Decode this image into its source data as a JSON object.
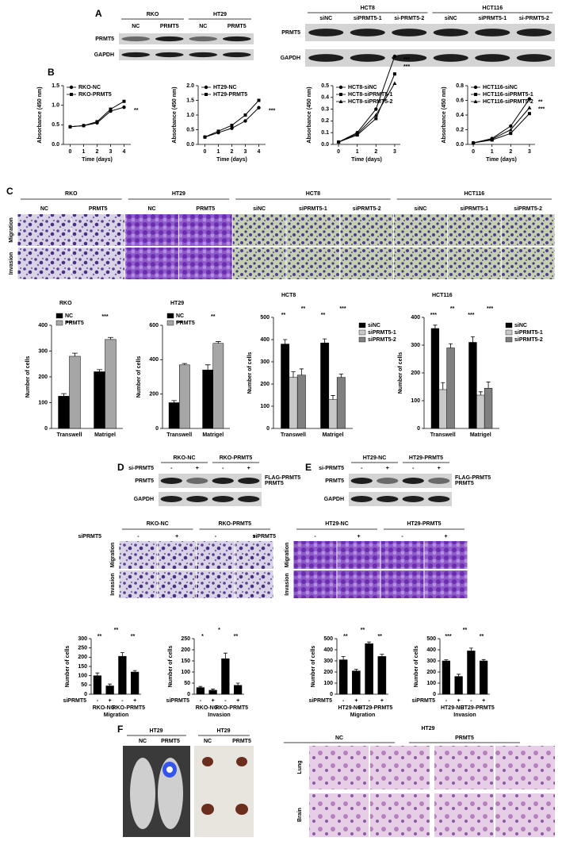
{
  "panel_labels": [
    "A",
    "B",
    "C",
    "D",
    "E",
    "F"
  ],
  "blot_a_left": {
    "groups": [
      "RKO",
      "HT29"
    ],
    "lanes": [
      "NC",
      "PRMT5",
      "NC",
      "PRMT5"
    ],
    "rows": [
      "PRMT5",
      "GAPDH"
    ]
  },
  "blot_a_right": {
    "groups": [
      "HCT8",
      "HCT116"
    ],
    "lanes": [
      "siNC",
      "siPRMT5-1",
      "si-PRMT5-2",
      "siNC",
      "siPRMT5-1",
      "si-PRMT5-2"
    ],
    "rows": [
      "PRMT5",
      "GAPDH"
    ]
  },
  "images_c": {
    "groups": [
      "RKO",
      "HT29",
      "HCT8",
      "HCT116"
    ],
    "lanes": [
      "NC",
      "PRMT5",
      "NC",
      "PRMT5",
      "siNC",
      "siPRMT5-1",
      "siPRMT5-2",
      "siNC",
      "siPRMT5-1",
      "siPRMT5-2"
    ],
    "rows": [
      "Migration",
      "Invasion"
    ]
  },
  "blot_d": {
    "treatment": "si-PRMT5",
    "groups": [
      "RKO-NC",
      "RKO-PRMT5"
    ],
    "lanes": [
      "-",
      "+",
      "-",
      "+"
    ],
    "rows": [
      "PRMT5",
      "GAPDH"
    ],
    "band_labels": [
      "FLAG-PRMT5",
      "PRMT5"
    ]
  },
  "blot_e": {
    "treatment": "si-PRMT5",
    "groups": [
      "HT29-NC",
      "HT29-PRMT5"
    ],
    "lanes": [
      "-",
      "+",
      "-",
      "+"
    ],
    "rows": [
      "PRMT5",
      "GAPDH"
    ],
    "band_labels": [
      "FLAG-PRMT5",
      "PRMT5"
    ]
  },
  "images_d": {
    "treatment": "siPRMT5",
    "groups": [
      "RKO-NC",
      "RKO-PRMT5"
    ],
    "lanes": [
      "-",
      "+",
      "-",
      "+"
    ],
    "rows": [
      "Migration",
      "Invasion"
    ]
  },
  "images_e": {
    "treatment": "siPRMT5",
    "groups": [
      "HT29-NC",
      "HT29-PRMT5"
    ],
    "lanes": [
      "-",
      "+",
      "-",
      "+"
    ],
    "rows": [
      "Migration",
      "Invasion"
    ]
  },
  "panel_f": {
    "mouse": {
      "title": "HT29",
      "labels": [
        "NC",
        "PRMT5"
      ]
    },
    "organs": {
      "title": "HT29",
      "labels": [
        "NC",
        "PRMT5"
      ]
    },
    "histology": {
      "title": "HT29",
      "groups": [
        "NC",
        "PRMT5"
      ],
      "rows": [
        "Lung",
        "Brain"
      ]
    }
  },
  "chart_data": [
    {
      "type": "line",
      "xlabel": "Time (days)",
      "ylabel": "Absorbance (450 nm)",
      "x": [
        0,
        1,
        2,
        3,
        4
      ],
      "xlim": [
        -0.5,
        4.5
      ],
      "xticks": [
        0,
        1,
        2,
        3,
        4
      ],
      "ylim": [
        0,
        1.5
      ],
      "yticks": [
        {
          "value": 0,
          "label": "0.0"
        },
        0.5,
        {
          "value": 1,
          "label": "1.0"
        },
        1.5
      ],
      "series": [
        {
          "name": "RKO-NC",
          "color": "#000000",
          "values": [
            0.45,
            0.48,
            0.55,
            0.85,
            0.95
          ]
        },
        {
          "name": "RKO-PRMT5",
          "color": "#000000",
          "values": [
            0.45,
            0.48,
            0.58,
            0.9,
            1.1
          ]
        }
      ],
      "annotations": [
        "**"
      ]
    },
    {
      "type": "line",
      "xlabel": "Time (days)",
      "ylabel": "Absorbance (450 nm)",
      "x": [
        0,
        1,
        2,
        3,
        4
      ],
      "xlim": [
        -0.5,
        4.5
      ],
      "xticks": [
        0,
        1,
        2,
        3,
        4
      ],
      "ylim": [
        0,
        2
      ],
      "yticks": [
        {
          "value": 0,
          "label": "0.0"
        },
        0.5,
        {
          "value": 1,
          "label": "1.0"
        },
        1.5,
        {
          "value": 2,
          "label": "2.0"
        }
      ],
      "series": [
        {
          "name": "HT29-NC",
          "color": "#000000",
          "values": [
            0.25,
            0.4,
            0.55,
            0.8,
            1.25
          ]
        },
        {
          "name": "HT29-PRMT5",
          "color": "#000000",
          "values": [
            0.25,
            0.45,
            0.65,
            1.0,
            1.5
          ]
        }
      ],
      "annotations": [
        "***"
      ]
    },
    {
      "type": "line",
      "xlabel": "Time (days)",
      "ylabel": "Absorbance (450 nm)",
      "x": [
        0,
        1,
        2,
        3
      ],
      "xlim": [
        -0.3,
        3.3
      ],
      "xticks": [
        0,
        1,
        2,
        3
      ],
      "ylim": [
        0,
        0.5
      ],
      "yticks": [
        {
          "value": 0,
          "label": "0.0"
        },
        0.1,
        0.2,
        0.3,
        0.4,
        0.5
      ],
      "series": [
        {
          "name": "HCT8-siNC",
          "color": "#000000",
          "values": [
            0.02,
            0.1,
            0.3,
            0.75
          ]
        },
        {
          "name": "HCT8-siPRMT5-1",
          "color": "#000000",
          "values": [
            0.02,
            0.08,
            0.22,
            0.6
          ]
        },
        {
          "name": "HCT8-siPRMT5-2",
          "color": "#000000",
          "values": [
            0.02,
            0.09,
            0.25,
            0.52
          ]
        }
      ],
      "annotations": [
        "***",
        "***"
      ]
    },
    {
      "type": "line",
      "xlabel": "Time (days)",
      "ylabel": "Absorbance (450 nm)",
      "x": [
        0,
        1,
        2,
        3
      ],
      "xlim": [
        -0.3,
        3.3
      ],
      "xticks": [
        0,
        1,
        2,
        3
      ],
      "ylim": [
        0,
        0.8
      ],
      "yticks": [
        {
          "value": 0,
          "label": "0.0"
        },
        0.2,
        0.4,
        0.6,
        0.8
      ],
      "series": [
        {
          "name": "HCT116-siNC",
          "color": "#000000",
          "values": [
            0.02,
            0.08,
            0.25,
            0.62
          ]
        },
        {
          "name": "HCT116-siPRMT5-1",
          "color": "#000000",
          "values": [
            0.02,
            0.06,
            0.15,
            0.42
          ]
        },
        {
          "name": "HCT116-siPRMT5-2",
          "color": "#000000",
          "values": [
            0.02,
            0.07,
            0.2,
            0.5
          ]
        }
      ],
      "annotations": [
        "**",
        "***"
      ]
    },
    {
      "type": "bar",
      "title": "RKO",
      "ylabel": "Number of cells",
      "categories": [
        "Transwell",
        "Matrigel"
      ],
      "legend": "upper left",
      "ylim": [
        0,
        400
      ],
      "yticks": [
        0,
        100,
        200,
        300,
        400
      ],
      "series": [
        {
          "name": "NC",
          "color": "#000000",
          "values": [
            125,
            220
          ],
          "errors": [
            10,
            8
          ]
        },
        {
          "name": "PRMT5",
          "color": "#a6a6a6",
          "values": [
            280,
            345
          ],
          "errors": [
            12,
            8
          ]
        }
      ],
      "annotations": [
        "***",
        "***"
      ]
    },
    {
      "type": "bar",
      "title": "HT29",
      "ylabel": "Number of cells",
      "categories": [
        "Transwell",
        "Matrigel"
      ],
      "legend": "upper left",
      "ylim": [
        0,
        600
      ],
      "yticks": [
        0,
        200,
        400,
        600
      ],
      "series": [
        {
          "name": "NC",
          "color": "#000000",
          "values": [
            150,
            340
          ],
          "errors": [
            12,
            30
          ]
        },
        {
          "name": "PRMT5",
          "color": "#a6a6a6",
          "values": [
            370,
            495
          ],
          "errors": [
            8,
            10
          ]
        }
      ],
      "annotations": [
        "***",
        "**"
      ]
    },
    {
      "type": "bar",
      "title": "HCT8",
      "ylabel": "Number of cells",
      "categories": [
        "Transwell",
        "Matrigel"
      ],
      "legend": "right",
      "ylim": [
        0,
        500
      ],
      "yticks": [
        0,
        100,
        200,
        300,
        400,
        500
      ],
      "series": [
        {
          "name": "siNC",
          "color": "#000000",
          "values": [
            380,
            385
          ],
          "errors": [
            20,
            18
          ]
        },
        {
          "name": "siPRMT5-1",
          "color": "#c8c8c8",
          "values": [
            230,
            130
          ],
          "errors": [
            25,
            18
          ]
        },
        {
          "name": "siPRMT5-2",
          "color": "#808080",
          "values": [
            240,
            230
          ],
          "errors": [
            28,
            15
          ]
        }
      ],
      "annotations": [
        "**",
        "**",
        "**",
        "***"
      ]
    },
    {
      "type": "bar",
      "title": "HCT116",
      "ylabel": "Number of cells",
      "categories": [
        "Transwell",
        "Matrigel"
      ],
      "legend": "right",
      "ylim": [
        0,
        400
      ],
      "yticks": [
        0,
        100,
        200,
        300,
        400
      ],
      "series": [
        {
          "name": "siNC",
          "color": "#000000",
          "values": [
            360,
            310
          ],
          "errors": [
            12,
            20
          ]
        },
        {
          "name": "siPRMT5-1",
          "color": "#c8c8c8",
          "values": [
            140,
            120
          ],
          "errors": [
            25,
            12
          ]
        },
        {
          "name": "siPRMT5-2",
          "color": "#808080",
          "values": [
            290,
            145
          ],
          "errors": [
            15,
            22
          ]
        }
      ],
      "annotations": [
        "***",
        "**",
        "***",
        "***"
      ]
    },
    {
      "type": "bar",
      "ylabel": "Number of cells",
      "categories": [
        "-",
        "+",
        "-",
        "+"
      ],
      "row_label": "siPRMT5",
      "group_labels": [
        "RKO-NC",
        "RKO-PRMT5"
      ],
      "xlabel": "Migration",
      "ylim": [
        0,
        300
      ],
      "yticks": [
        0,
        50,
        100,
        150,
        200,
        250,
        300
      ],
      "series": [
        {
          "color": "#000000",
          "values": [
            100,
            45,
            205,
            120
          ],
          "errors": [
            15,
            10,
            20,
            8
          ]
        }
      ],
      "annotations": [
        "**",
        "**",
        "**"
      ]
    },
    {
      "type": "bar",
      "ylabel": "Number of cells",
      "categories": [
        "-",
        "+",
        "-",
        "+"
      ],
      "row_label": "siPRMT5",
      "group_labels": [
        "RKO-NC",
        "RKO-PRMT5"
      ],
      "xlabel": "Invasion",
      "ylim": [
        0,
        250
      ],
      "yticks": [
        0,
        50,
        100,
        150,
        200,
        250
      ],
      "series": [
        {
          "color": "#000000",
          "values": [
            30,
            18,
            160,
            40
          ],
          "errors": [
            5,
            5,
            25,
            10
          ]
        }
      ],
      "annotations": [
        "*",
        "*",
        "**"
      ]
    },
    {
      "type": "bar",
      "ylabel": "Number of cells",
      "categories": [
        "-",
        "+",
        "-",
        "+"
      ],
      "row_label": "siPRMT5",
      "group_labels": [
        "HT29-NC",
        "HT29-PRMT5"
      ],
      "xlabel": "Migration",
      "ylim": [
        0,
        500
      ],
      "yticks": [
        0,
        100,
        200,
        300,
        400,
        500
      ],
      "series": [
        {
          "color": "#000000",
          "values": [
            310,
            210,
            455,
            340
          ],
          "errors": [
            30,
            15,
            15,
            20
          ]
        }
      ],
      "annotations": [
        "**",
        "**",
        "**"
      ]
    },
    {
      "type": "bar",
      "ylabel": "Number of cells",
      "categories": [
        "-",
        "+",
        "-",
        "+"
      ],
      "row_label": "siPRMT5",
      "group_labels": [
        "HT29-NC",
        "HT29-PRMT5"
      ],
      "xlabel": "Invasion",
      "ylim": [
        0,
        500
      ],
      "yticks": [
        0,
        100,
        200,
        300,
        400,
        500
      ],
      "series": [
        {
          "color": "#000000",
          "values": [
            300,
            160,
            390,
            300
          ],
          "errors": [
            10,
            20,
            25,
            12
          ]
        }
      ],
      "annotations": [
        "***",
        "**",
        "**"
      ]
    }
  ]
}
